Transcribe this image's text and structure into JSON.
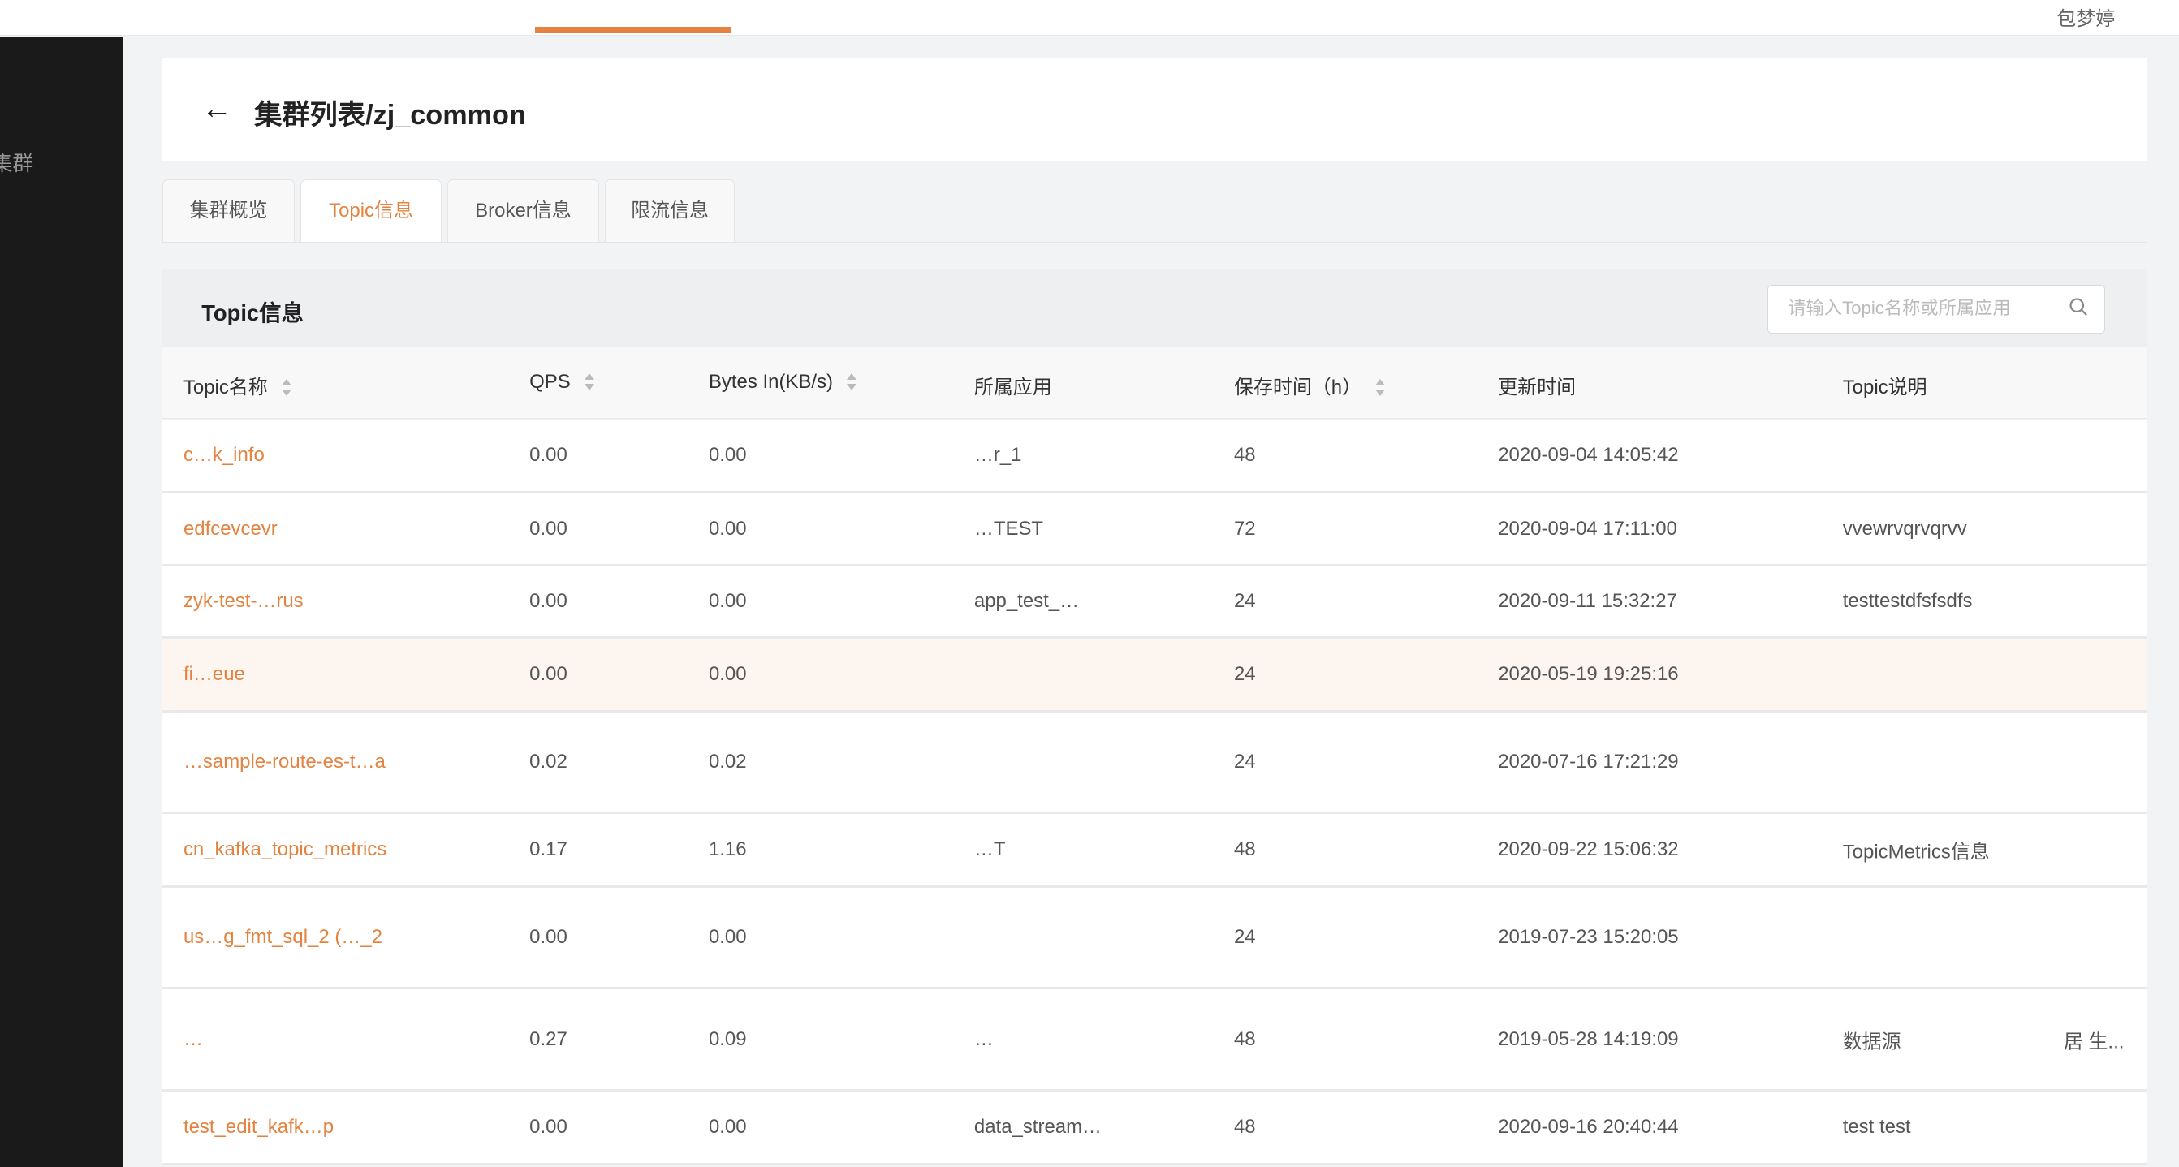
{
  "user": {
    "name": "包梦婷"
  },
  "sidebar": {
    "items": [
      {
        "label": "集群"
      }
    ]
  },
  "header": {
    "title": "集群列表/zj_common"
  },
  "tabs": [
    {
      "label": "集群概览"
    },
    {
      "label": "Topic信息",
      "active": true
    },
    {
      "label": "Broker信息"
    },
    {
      "label": "限流信息"
    }
  ],
  "section": {
    "title": "Topic信息",
    "search_placeholder": "请输入Topic名称或所属应用"
  },
  "table": {
    "columns": [
      "Topic名称",
      "QPS",
      "Bytes In(KB/s)",
      "所属应用",
      "保存时间（h）",
      "更新时间",
      "Topic说明"
    ],
    "rows": [
      {
        "name": "c…k_info",
        "qps": "0.00",
        "bytes_in": "0.00",
        "app": "…r_1",
        "retention": "48",
        "updated": "2020-09-04 14:05:42",
        "desc": "",
        "extra": ""
      },
      {
        "name": "edfcevcevr",
        "qps": "0.00",
        "bytes_in": "0.00",
        "app": "…TEST",
        "retention": "72",
        "updated": "2020-09-04 17:11:00",
        "desc": "vvewrvqrvqrvv",
        "extra": ""
      },
      {
        "name": "zyk-test-…rus",
        "qps": "0.00",
        "bytes_in": "0.00",
        "app": "app_test_…",
        "retention": "24",
        "updated": "2020-09-11 15:32:27",
        "desc": "testtestdfsfsdfs",
        "extra": ""
      },
      {
        "name": "fi…eue",
        "qps": "0.00",
        "bytes_in": "0.00",
        "app": "",
        "retention": "24",
        "updated": "2020-05-19 19:25:16",
        "desc": "",
        "extra": "",
        "highlight": true
      },
      {
        "name": "…sample-route-es-t…a",
        "qps": "0.02",
        "bytes_in": "0.02",
        "app": "",
        "retention": "24",
        "updated": "2020-07-16 17:21:29",
        "desc": "",
        "extra": ""
      },
      {
        "name": "cn_kafka_topic_metrics",
        "qps": "0.17",
        "bytes_in": "1.16",
        "app": "…T",
        "retention": "48",
        "updated": "2020-09-22 15:06:32",
        "desc": "TopicMetrics信息",
        "extra": ""
      },
      {
        "name": "us…g_fmt_sql_2 (…_2",
        "qps": "0.00",
        "bytes_in": "0.00",
        "app": "",
        "retention": "24",
        "updated": "2019-07-23 15:20:05",
        "desc": "",
        "extra": ""
      },
      {
        "name": "…",
        "qps": "0.27",
        "bytes_in": "0.09",
        "app": "…",
        "retention": "48",
        "updated": "2019-05-28 14:19:09",
        "desc": "数据源",
        "extra": "居 生..."
      },
      {
        "name": "test_edit_kafk…p",
        "qps": "0.00",
        "bytes_in": "0.00",
        "app": "data_stream…",
        "retention": "48",
        "updated": "2020-09-16 20:40:44",
        "desc": "test test",
        "extra": ""
      }
    ]
  },
  "colors": {
    "accent": "#e3833f",
    "sidebar": "#1a1a1a",
    "highlight_row": "#fdf6f0"
  }
}
